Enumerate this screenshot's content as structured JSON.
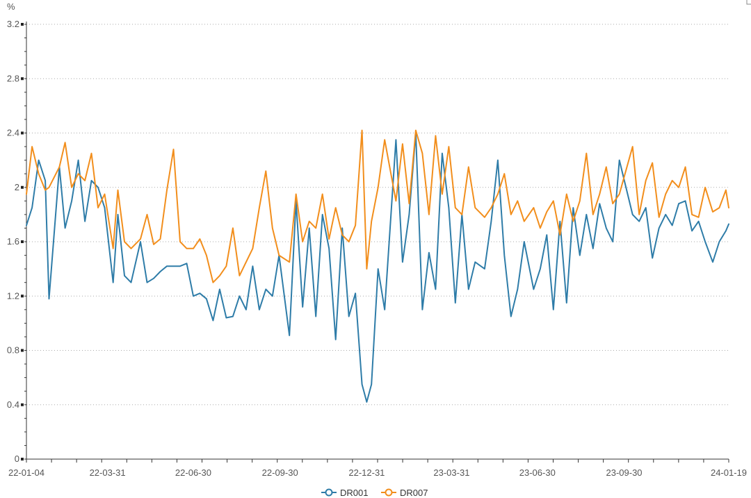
{
  "chart_data": {
    "type": "line",
    "ylabel": "%",
    "ylim": [
      0,
      3.2
    ],
    "yticks": [
      0,
      0.4,
      0.8,
      1.2,
      1.6,
      2,
      2.4,
      2.8,
      3.2
    ],
    "ytick_labels": [
      "0",
      "0.4",
      "0.8",
      "1.2",
      "1.6",
      "2",
      "2.4",
      "2.8",
      "3.2"
    ],
    "xlim": [
      "2022-01-04",
      "2024-01-19"
    ],
    "xticks": [
      "2022-01-04",
      "2022-03-31",
      "2022-06-30",
      "2022-09-30",
      "2022-12-31",
      "2023-03-31",
      "2023-06-30",
      "2023-09-30",
      "2024-01-19"
    ],
    "xtick_labels": [
      "22-01-04",
      "22-03-31",
      "22-06-30",
      "22-09-30",
      "22-12-31",
      "23-03-31",
      "23-06-30",
      "23-09-30",
      "24-01-19"
    ],
    "grid": "horizontal dotted",
    "legend_position": "bottom-center",
    "colors": {
      "DR001": "#2e7ca8",
      "DR007": "#f28e1c"
    },
    "series": [
      {
        "name": "DR001",
        "x": [
          "2022-01-04",
          "2022-01-10",
          "2022-01-17",
          "2022-01-24",
          "2022-01-28",
          "2022-02-08",
          "2022-02-14",
          "2022-02-21",
          "2022-02-28",
          "2022-03-07",
          "2022-03-14",
          "2022-03-21",
          "2022-03-28",
          "2022-04-06",
          "2022-04-11",
          "2022-04-18",
          "2022-04-25",
          "2022-05-05",
          "2022-05-12",
          "2022-05-19",
          "2022-05-26",
          "2022-06-02",
          "2022-06-09",
          "2022-06-16",
          "2022-06-23",
          "2022-06-30",
          "2022-07-07",
          "2022-07-14",
          "2022-07-21",
          "2022-07-28",
          "2022-08-04",
          "2022-08-11",
          "2022-08-18",
          "2022-08-25",
          "2022-09-01",
          "2022-09-08",
          "2022-09-15",
          "2022-09-22",
          "2022-09-29",
          "2022-10-10",
          "2022-10-17",
          "2022-10-24",
          "2022-10-31",
          "2022-11-07",
          "2022-11-14",
          "2022-11-21",
          "2022-11-28",
          "2022-12-05",
          "2022-12-12",
          "2022-12-19",
          "2022-12-26",
          "2022-12-31",
          "2023-01-05",
          "2023-01-12",
          "2023-01-19",
          "2023-01-31",
          "2023-02-07",
          "2023-02-14",
          "2023-02-21",
          "2023-02-28",
          "2023-03-07",
          "2023-03-14",
          "2023-03-21",
          "2023-03-28",
          "2023-04-04",
          "2023-04-11",
          "2023-04-18",
          "2023-04-25",
          "2023-05-05",
          "2023-05-12",
          "2023-05-19",
          "2023-05-26",
          "2023-06-02",
          "2023-06-09",
          "2023-06-16",
          "2023-06-26",
          "2023-07-03",
          "2023-07-10",
          "2023-07-17",
          "2023-07-24",
          "2023-07-31",
          "2023-08-07",
          "2023-08-14",
          "2023-08-21",
          "2023-08-28",
          "2023-09-04",
          "2023-09-11",
          "2023-09-18",
          "2023-09-25",
          "2023-10-09",
          "2023-10-16",
          "2023-10-23",
          "2023-10-30",
          "2023-11-06",
          "2023-11-13",
          "2023-11-20",
          "2023-11-27",
          "2023-12-04",
          "2023-12-11",
          "2023-12-18",
          "2023-12-25",
          "2024-01-02",
          "2024-01-09",
          "2024-01-16",
          "2024-01-19"
        ],
        "values": [
          1.72,
          1.85,
          2.2,
          2.05,
          1.18,
          2.15,
          1.7,
          1.9,
          2.2,
          1.75,
          2.05,
          2.0,
          1.85,
          1.3,
          1.8,
          1.35,
          1.3,
          1.6,
          1.3,
          1.33,
          1.38,
          1.42,
          1.42,
          1.42,
          1.44,
          1.2,
          1.22,
          1.18,
          1.02,
          1.25,
          1.04,
          1.05,
          1.2,
          1.1,
          1.42,
          1.1,
          1.25,
          1.2,
          1.5,
          0.91,
          1.9,
          1.12,
          1.7,
          1.05,
          1.8,
          1.55,
          0.88,
          1.7,
          1.05,
          1.22,
          0.55,
          0.42,
          0.55,
          1.4,
          1.1,
          2.35,
          1.45,
          1.8,
          2.4,
          1.1,
          1.52,
          1.25,
          2.25,
          1.85,
          1.15,
          1.8,
          1.25,
          1.45,
          1.4,
          1.75,
          2.2,
          1.5,
          1.05,
          1.25,
          1.6,
          1.25,
          1.4,
          1.65,
          1.1,
          1.75,
          1.15,
          1.85,
          1.5,
          1.8,
          1.55,
          1.88,
          1.7,
          1.6,
          2.2,
          1.8,
          1.75,
          1.85,
          1.48,
          1.7,
          1.8,
          1.72,
          1.88,
          1.9,
          1.68,
          1.75,
          1.6,
          1.45,
          1.6,
          1.68,
          1.73
        ]
      },
      {
        "name": "DR007",
        "x": [
          "2022-01-04",
          "2022-01-10",
          "2022-01-17",
          "2022-01-24",
          "2022-01-28",
          "2022-02-08",
          "2022-02-14",
          "2022-02-21",
          "2022-02-28",
          "2022-03-07",
          "2022-03-14",
          "2022-03-21",
          "2022-03-28",
          "2022-04-06",
          "2022-04-11",
          "2022-04-18",
          "2022-04-25",
          "2022-05-05",
          "2022-05-12",
          "2022-05-19",
          "2022-05-26",
          "2022-06-02",
          "2022-06-09",
          "2022-06-16",
          "2022-06-23",
          "2022-06-30",
          "2022-07-07",
          "2022-07-14",
          "2022-07-21",
          "2022-07-28",
          "2022-08-04",
          "2022-08-11",
          "2022-08-18",
          "2022-08-25",
          "2022-09-01",
          "2022-09-08",
          "2022-09-15",
          "2022-09-22",
          "2022-09-29",
          "2022-10-10",
          "2022-10-17",
          "2022-10-24",
          "2022-10-31",
          "2022-11-07",
          "2022-11-14",
          "2022-11-21",
          "2022-11-28",
          "2022-12-05",
          "2022-12-12",
          "2022-12-19",
          "2022-12-26",
          "2022-12-31",
          "2023-01-05",
          "2023-01-12",
          "2023-01-19",
          "2023-01-31",
          "2023-02-07",
          "2023-02-14",
          "2023-02-21",
          "2023-02-28",
          "2023-03-07",
          "2023-03-14",
          "2023-03-21",
          "2023-03-28",
          "2023-04-04",
          "2023-04-11",
          "2023-04-18",
          "2023-04-25",
          "2023-05-05",
          "2023-05-12",
          "2023-05-19",
          "2023-05-26",
          "2023-06-02",
          "2023-06-09",
          "2023-06-16",
          "2023-06-26",
          "2023-07-03",
          "2023-07-10",
          "2023-07-17",
          "2023-07-24",
          "2023-07-31",
          "2023-08-07",
          "2023-08-14",
          "2023-08-21",
          "2023-08-28",
          "2023-09-04",
          "2023-09-11",
          "2023-09-18",
          "2023-09-25",
          "2023-10-09",
          "2023-10-16",
          "2023-10-23",
          "2023-10-30",
          "2023-11-06",
          "2023-11-13",
          "2023-11-20",
          "2023-11-27",
          "2023-12-04",
          "2023-12-11",
          "2023-12-18",
          "2023-12-25",
          "2024-01-02",
          "2024-01-09",
          "2024-01-16",
          "2024-01-19"
        ],
        "values": [
          1.95,
          2.3,
          2.1,
          1.98,
          2.0,
          2.15,
          2.33,
          2.0,
          2.1,
          2.05,
          2.25,
          1.85,
          1.95,
          1.55,
          1.98,
          1.6,
          1.55,
          1.62,
          1.8,
          1.58,
          1.62,
          1.98,
          2.28,
          1.6,
          1.55,
          1.55,
          1.62,
          1.5,
          1.3,
          1.35,
          1.42,
          1.7,
          1.35,
          1.45,
          1.55,
          1.85,
          2.12,
          1.7,
          1.5,
          1.45,
          1.95,
          1.6,
          1.75,
          1.7,
          1.95,
          1.62,
          1.85,
          1.65,
          1.6,
          1.72,
          2.42,
          1.4,
          1.75,
          2.0,
          2.35,
          1.9,
          2.32,
          1.88,
          2.42,
          2.25,
          1.8,
          2.38,
          1.95,
          2.3,
          1.85,
          1.8,
          2.15,
          1.85,
          1.78,
          1.85,
          1.95,
          2.1,
          1.8,
          1.9,
          1.75,
          1.85,
          1.7,
          1.82,
          1.9,
          1.65,
          1.95,
          1.75,
          1.9,
          2.25,
          1.8,
          1.95,
          2.15,
          1.88,
          1.95,
          2.3,
          1.8,
          2.05,
          2.18,
          1.78,
          1.95,
          2.05,
          2.0,
          2.15,
          1.8,
          1.78,
          2.0,
          1.82,
          1.85,
          1.98,
          1.85
        ]
      }
    ]
  }
}
